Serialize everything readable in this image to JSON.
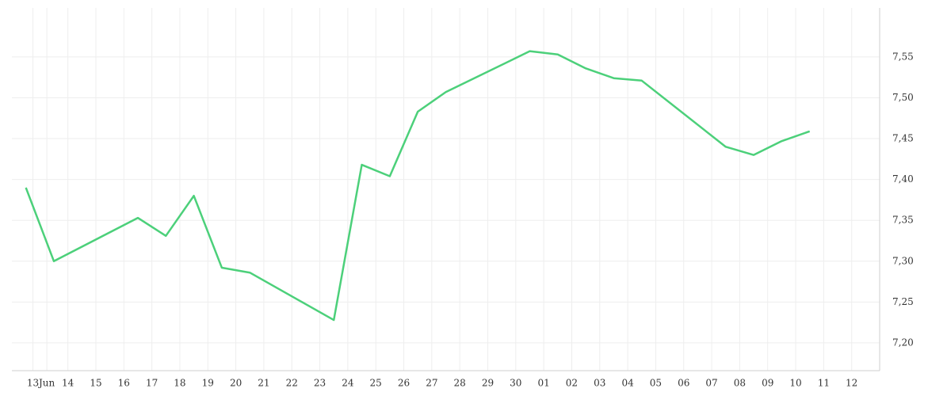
{
  "chart_data": {
    "type": "line",
    "x": [
      -0.5,
      0.5,
      3.5,
      4.5,
      5.5,
      6.5,
      7.5,
      10.5,
      11.5,
      12.5,
      13.5,
      14.5,
      17.5,
      18.5,
      19.5,
      20.5,
      21.5,
      24.5,
      25.5,
      26.5,
      27.5
    ],
    "series": [
      {
        "color": "#4cd07a",
        "values": [
          7.39,
          7.3,
          7.353,
          7.331,
          7.38,
          7.292,
          7.286,
          7.228,
          7.418,
          7.404,
          7.483,
          7.507,
          7.557,
          7.553,
          7.536,
          7.524,
          7.521,
          7.44,
          7.43,
          7.447,
          7.459
        ]
      }
    ],
    "xlim": [
      -1,
      30
    ],
    "xticks": [
      {
        "value": -0.25,
        "label": "13"
      },
      {
        "value": 0.25,
        "label": "Jun"
      },
      {
        "value": 1,
        "label": "14"
      },
      {
        "value": 2,
        "label": "15"
      },
      {
        "value": 3,
        "label": "16"
      },
      {
        "value": 4,
        "label": "17"
      },
      {
        "value": 5,
        "label": "18"
      },
      {
        "value": 6,
        "label": "19"
      },
      {
        "value": 7,
        "label": "20"
      },
      {
        "value": 8,
        "label": "21"
      },
      {
        "value": 9,
        "label": "22"
      },
      {
        "value": 10,
        "label": "23"
      },
      {
        "value": 11,
        "label": "24"
      },
      {
        "value": 12,
        "label": "25"
      },
      {
        "value": 13,
        "label": "26"
      },
      {
        "value": 14,
        "label": "27"
      },
      {
        "value": 15,
        "label": "28"
      },
      {
        "value": 16,
        "label": "29"
      },
      {
        "value": 17,
        "label": "30"
      },
      {
        "value": 18,
        "label": "01"
      },
      {
        "value": 19,
        "label": "02"
      },
      {
        "value": 20,
        "label": "03"
      },
      {
        "value": 21,
        "label": "04"
      },
      {
        "value": 22,
        "label": "05"
      },
      {
        "value": 23,
        "label": "06"
      },
      {
        "value": 24,
        "label": "07"
      },
      {
        "value": 25,
        "label": "08"
      },
      {
        "value": 26,
        "label": "09"
      },
      {
        "value": 27,
        "label": "10"
      },
      {
        "value": 28,
        "label": "11"
      },
      {
        "value": 29,
        "label": "12"
      }
    ],
    "ylim": [
      7.166,
      7.61
    ],
    "yticks": [
      {
        "value": 7.2,
        "label": "7,20"
      },
      {
        "value": 7.25,
        "label": "7,25"
      },
      {
        "value": 7.3,
        "label": "7,30"
      },
      {
        "value": 7.35,
        "label": "7,35"
      },
      {
        "value": 7.4,
        "label": "7,40"
      },
      {
        "value": 7.45,
        "label": "7,45"
      },
      {
        "value": 7.5,
        "label": "7,50"
      },
      {
        "value": 7.55,
        "label": "7,55"
      }
    ],
    "grid": true
  }
}
